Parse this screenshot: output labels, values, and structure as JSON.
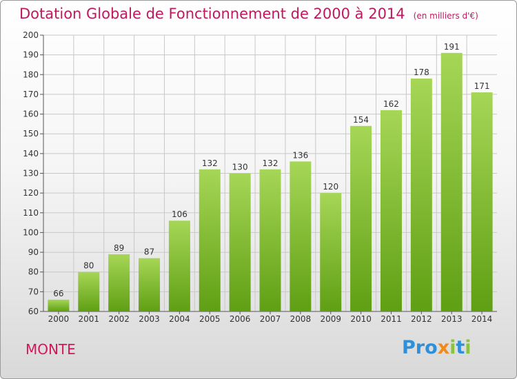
{
  "title": "Dotation Globale de Fonctionnement de 2000 à 2014",
  "unit": "(en milliers d'€)",
  "commune": "MONTE",
  "logo": {
    "letters": [
      {
        "ch": "P",
        "color": "#2f8fd8"
      },
      {
        "ch": "r",
        "color": "#2f8fd8"
      },
      {
        "ch": "o",
        "color": "#2f8fd8"
      },
      {
        "ch": "x",
        "color": "#f08a1c"
      },
      {
        "ch": "i",
        "color": "#8ac43f"
      },
      {
        "ch": "t",
        "color": "#2f8fd8"
      },
      {
        "ch": "i",
        "color": "#8ac43f"
      }
    ]
  },
  "colors": {
    "title": "#c0185f",
    "bar_top": "#a6d656",
    "bar_bottom": "#5f9f14",
    "grid": "#c8c8c8",
    "text": "#333333"
  },
  "chart_data": {
    "type": "bar",
    "categories": [
      "2000",
      "2001",
      "2002",
      "2003",
      "2004",
      "2005",
      "2006",
      "2007",
      "2008",
      "2009",
      "2010",
      "2011",
      "2012",
      "2013",
      "2014"
    ],
    "values": [
      66,
      80,
      89,
      87,
      106,
      132,
      130,
      132,
      136,
      120,
      154,
      162,
      178,
      191,
      171
    ],
    "ylim": [
      60,
      200
    ],
    "yticks": [
      60,
      70,
      80,
      90,
      100,
      110,
      120,
      130,
      140,
      150,
      160,
      170,
      180,
      190,
      200
    ],
    "grid": true
  }
}
